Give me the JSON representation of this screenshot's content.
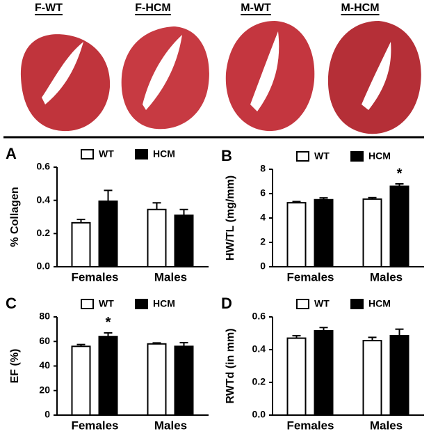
{
  "histology": {
    "labels": [
      "F-WT",
      "F-HCM",
      "M-WT",
      "M-HCM"
    ]
  },
  "chart_data": [
    {
      "type": "bar",
      "panel": "A",
      "ylabel": "% Collagen",
      "categories": [
        "Females",
        "Males"
      ],
      "ylim": [
        0,
        0.6
      ],
      "yticks": [
        {
          "value": 0,
          "label": "0.0"
        },
        0.2,
        0.4,
        0.6
      ],
      "series": [
        {
          "name": "WT",
          "color": "#ffffff",
          "values": [
            0.265,
            0.345
          ],
          "errors": [
            0.02,
            0.04
          ]
        },
        {
          "name": "HCM",
          "color": "#000000",
          "values": [
            0.395,
            0.31
          ],
          "errors": [
            0.065,
            0.035
          ]
        }
      ],
      "annotations": []
    },
    {
      "type": "bar",
      "panel": "B",
      "ylabel": "HW/TL (mg/mm)",
      "categories": [
        "Females",
        "Males"
      ],
      "ylim": [
        0,
        8
      ],
      "yticks": [
        0,
        2,
        4,
        6,
        8
      ],
      "series": [
        {
          "name": "WT",
          "color": "#ffffff",
          "values": [
            5.25,
            5.55
          ],
          "errors": [
            0.1,
            0.12
          ]
        },
        {
          "name": "HCM",
          "color": "#000000",
          "values": [
            5.5,
            6.6
          ],
          "errors": [
            0.15,
            0.2
          ]
        }
      ],
      "annotations": [
        {
          "text": "*",
          "category": "Males",
          "series": "HCM"
        }
      ]
    },
    {
      "type": "bar",
      "panel": "C",
      "ylabel": "EF (%)",
      "categories": [
        "Females",
        "Males"
      ],
      "ylim": [
        0,
        80
      ],
      "yticks": [
        0,
        20,
        40,
        60,
        80
      ],
      "series": [
        {
          "name": "WT",
          "color": "#ffffff",
          "values": [
            56,
            58
          ],
          "errors": [
            1.5,
            0.8
          ]
        },
        {
          "name": "HCM",
          "color": "#000000",
          "values": [
            64,
            56
          ],
          "errors": [
            3,
            3
          ]
        }
      ],
      "annotations": [
        {
          "text": "*",
          "category": "Females",
          "series": "HCM"
        }
      ]
    },
    {
      "type": "bar",
      "panel": "D",
      "ylabel": "RWTd (in mm)",
      "categories": [
        "Females",
        "Males"
      ],
      "ylim": [
        0,
        0.6
      ],
      "yticks": [
        {
          "value": 0,
          "label": "0.0"
        },
        0.2,
        0.4,
        0.6
      ],
      "series": [
        {
          "name": "WT",
          "color": "#ffffff",
          "values": [
            0.47,
            0.455
          ],
          "errors": [
            0.015,
            0.02
          ]
        },
        {
          "name": "HCM",
          "color": "#000000",
          "values": [
            0.515,
            0.485
          ],
          "errors": [
            0.02,
            0.04
          ]
        }
      ],
      "annotations": []
    }
  ]
}
